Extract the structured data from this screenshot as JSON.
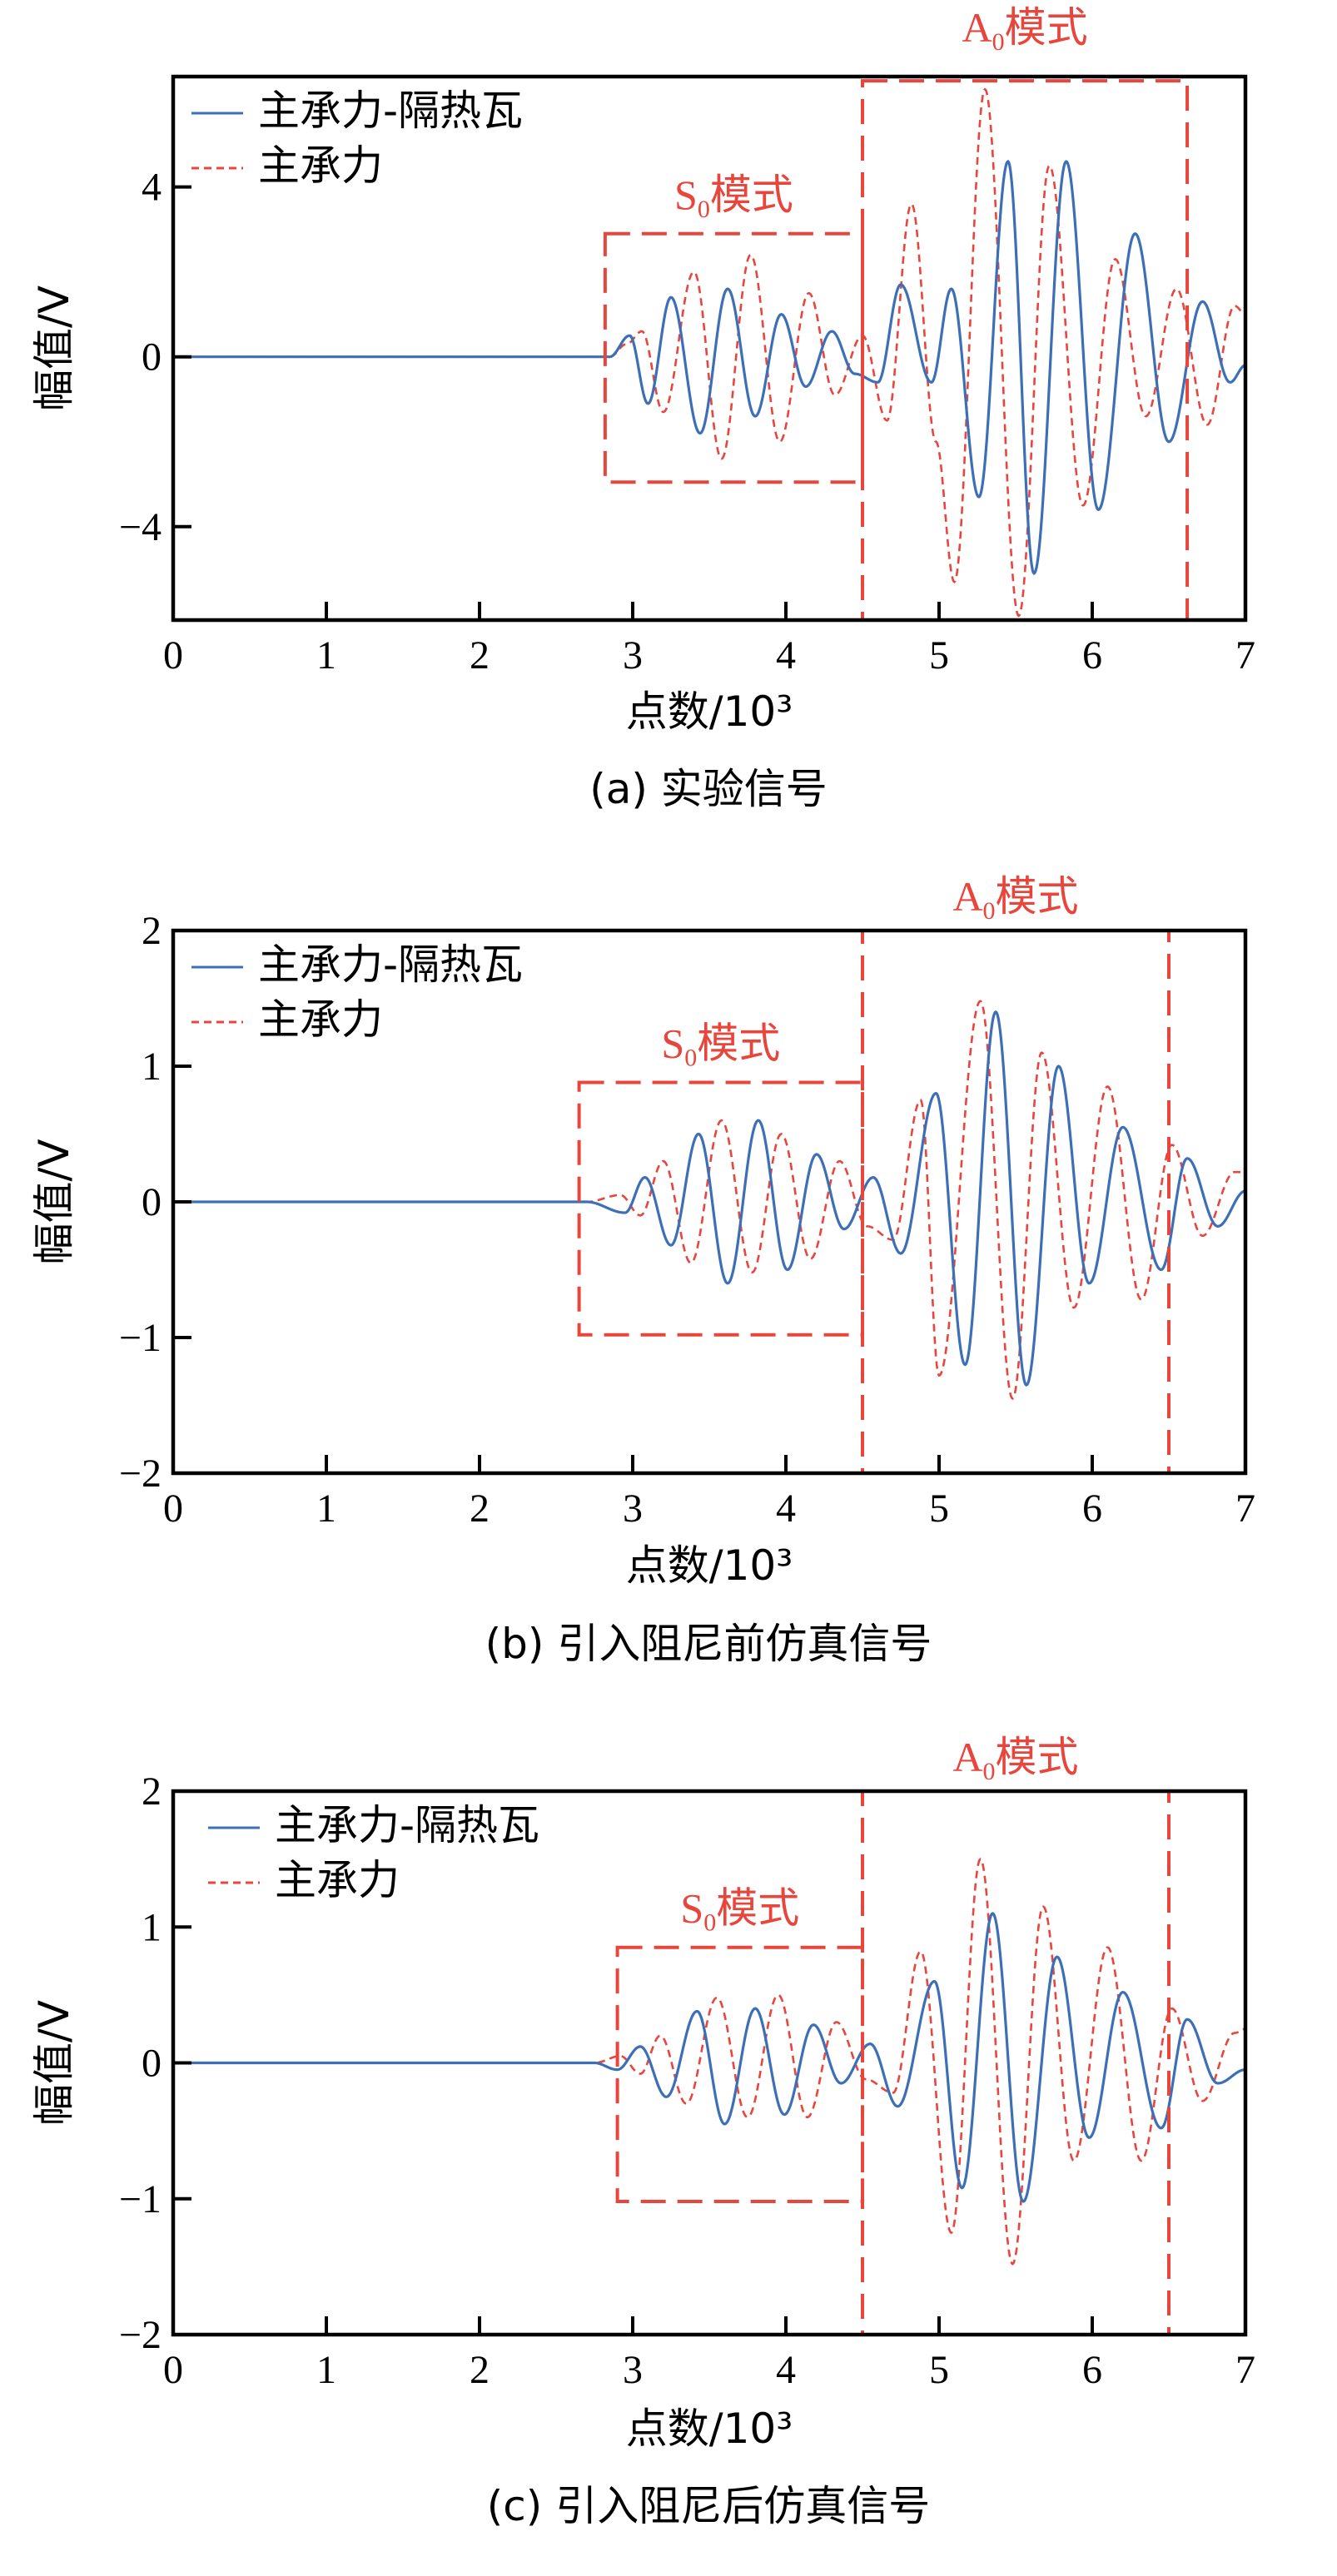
{
  "colors": {
    "blue": "#3d6fb6",
    "red": "#e8453c",
    "axis": "#000000"
  },
  "chart_data": [
    {
      "type": "line",
      "caption": "(a) 实验信号",
      "xlabel": "点数/10³",
      "ylabel": "幅值/V",
      "xlim": [
        0,
        7
      ],
      "ylim": [
        -6.2,
        6.6
      ],
      "xticks": [
        "0",
        "1",
        "2",
        "3",
        "4",
        "5",
        "6",
        "7"
      ],
      "yticks": [
        {
          "value": 4,
          "label": "4"
        },
        {
          "value": 0,
          "label": "0"
        },
        {
          "value": -4,
          "label": "−4"
        }
      ],
      "legend": {
        "position": "top-left",
        "entries": [
          "主承力-隔热瓦",
          "主承力"
        ]
      },
      "series": [
        {
          "name": "主承力-隔热瓦",
          "style": "solid",
          "onset": 2.85,
          "peaks": [
            [
              2.98,
              0.5
            ],
            [
              3.1,
              -1.1
            ],
            [
              3.25,
              1.4
            ],
            [
              3.44,
              -1.8
            ],
            [
              3.62,
              1.6
            ],
            [
              3.8,
              -1.4
            ],
            [
              3.97,
              1.0
            ],
            [
              4.13,
              -0.7
            ],
            [
              4.3,
              0.6
            ],
            [
              4.45,
              -0.4
            ],
            [
              4.6,
              -0.6
            ],
            [
              4.75,
              1.7
            ],
            [
              4.95,
              -0.6
            ],
            [
              5.08,
              1.6
            ],
            [
              5.26,
              -3.3
            ],
            [
              5.45,
              4.6
            ],
            [
              5.62,
              -5.1
            ],
            [
              5.83,
              4.6
            ],
            [
              6.04,
              -3.6
            ],
            [
              6.28,
              2.9
            ],
            [
              6.5,
              -2.0
            ],
            [
              6.72,
              1.3
            ],
            [
              6.9,
              -0.6
            ],
            [
              7.0,
              -0.2
            ]
          ]
        },
        {
          "name": "主承力",
          "style": "dashed",
          "onset": 2.85,
          "peaks": [
            [
              2.96,
              0.3
            ],
            [
              3.06,
              0.6
            ],
            [
              3.2,
              -1.3
            ],
            [
              3.4,
              2.0
            ],
            [
              3.58,
              -2.4
            ],
            [
              3.77,
              2.4
            ],
            [
              3.96,
              -2.0
            ],
            [
              4.15,
              1.5
            ],
            [
              4.32,
              -0.9
            ],
            [
              4.5,
              0.5
            ],
            [
              4.66,
              -1.5
            ],
            [
              4.82,
              3.6
            ],
            [
              4.98,
              -2.0
            ],
            [
              5.1,
              -5.3
            ],
            [
              5.3,
              6.3
            ],
            [
              5.52,
              -6.1
            ],
            [
              5.72,
              4.5
            ],
            [
              5.94,
              -3.5
            ],
            [
              6.15,
              2.3
            ],
            [
              6.35,
              -1.4
            ],
            [
              6.55,
              1.6
            ],
            [
              6.75,
              -1.6
            ],
            [
              6.93,
              1.2
            ],
            [
              7.0,
              1.0
            ]
          ]
        }
      ],
      "boxes": [
        {
          "label_main": "S",
          "label_sub": "0",
          "label_suffix": "模式",
          "x0": 2.82,
          "x1": 4.5,
          "y0": -2.95,
          "y1": 2.9
        },
        {
          "label_main": "A",
          "label_sub": "0",
          "label_suffix": "模式",
          "x0": 4.5,
          "x1": 6.62,
          "y0": -6.2,
          "y1": 6.5
        }
      ]
    },
    {
      "type": "line",
      "caption": "(b) 引入阻尼前仿真信号",
      "xlabel": "点数/10³",
      "ylabel": "幅值/V",
      "xlim": [
        0,
        7
      ],
      "ylim": [
        -2,
        2
      ],
      "xticks": [
        "0",
        "1",
        "2",
        "3",
        "4",
        "5",
        "6",
        "7"
      ],
      "yticks": [
        {
          "value": 2,
          "label": "2"
        },
        {
          "value": 1,
          "label": "1"
        },
        {
          "value": 0,
          "label": "0"
        },
        {
          "value": -1,
          "label": "−1"
        },
        {
          "value": -2,
          "label": "−2"
        }
      ],
      "legend": {
        "position": "top-left",
        "entries": [
          "主承力-隔热瓦",
          "主承力"
        ]
      },
      "series": [
        {
          "name": "主承力-隔热瓦",
          "style": "solid",
          "onset": 2.7,
          "peaks": [
            [
              2.95,
              -0.08
            ],
            [
              3.08,
              0.18
            ],
            [
              3.25,
              -0.32
            ],
            [
              3.43,
              0.5
            ],
            [
              3.62,
              -0.6
            ],
            [
              3.82,
              0.6
            ],
            [
              4.01,
              -0.5
            ],
            [
              4.2,
              0.35
            ],
            [
              4.38,
              -0.2
            ],
            [
              4.57,
              0.18
            ],
            [
              4.75,
              -0.38
            ],
            [
              4.98,
              0.8
            ],
            [
              5.17,
              -1.2
            ],
            [
              5.37,
              1.4
            ],
            [
              5.57,
              -1.35
            ],
            [
              5.78,
              1.0
            ],
            [
              5.98,
              -0.6
            ],
            [
              6.2,
              0.55
            ],
            [
              6.45,
              -0.5
            ],
            [
              6.62,
              0.32
            ],
            [
              6.82,
              -0.18
            ],
            [
              7.0,
              0.08
            ]
          ]
        },
        {
          "name": "主承力",
          "style": "dashed",
          "onset": 2.7,
          "peaks": [
            [
              2.92,
              0.05
            ],
            [
              3.05,
              -0.1
            ],
            [
              3.2,
              0.3
            ],
            [
              3.38,
              -0.45
            ],
            [
              3.58,
              0.6
            ],
            [
              3.78,
              -0.52
            ],
            [
              3.97,
              0.5
            ],
            [
              4.16,
              -0.42
            ],
            [
              4.35,
              0.3
            ],
            [
              4.53,
              -0.18
            ],
            [
              4.7,
              -0.28
            ],
            [
              4.88,
              0.75
            ],
            [
              5.0,
              -1.28
            ],
            [
              5.27,
              1.48
            ],
            [
              5.48,
              -1.45
            ],
            [
              5.67,
              1.1
            ],
            [
              5.88,
              -0.78
            ],
            [
              6.1,
              0.85
            ],
            [
              6.32,
              -0.72
            ],
            [
              6.52,
              0.42
            ],
            [
              6.72,
              -0.25
            ],
            [
              6.93,
              0.22
            ],
            [
              7.0,
              0.22
            ]
          ]
        }
      ],
      "boxes": [
        {
          "label_main": "S",
          "label_sub": "0",
          "label_suffix": "模式",
          "x0": 2.65,
          "x1": 4.5,
          "y0": -0.98,
          "y1": 0.88
        },
        {
          "label_main": "A",
          "label_sub": "0",
          "label_suffix": "模式",
          "x0": 4.5,
          "x1": 6.5,
          "y0": -2.0,
          "y1": 2.0
        }
      ]
    },
    {
      "type": "line",
      "caption": "(c) 引入阻尼后仿真信号",
      "xlabel": "点数/10³",
      "ylabel": "幅值/V",
      "xlim": [
        0,
        7
      ],
      "ylim": [
        -2,
        2
      ],
      "xticks": [
        "0",
        "1",
        "2",
        "3",
        "4",
        "5",
        "6",
        "7"
      ],
      "yticks": [
        {
          "value": 2,
          "label": "2"
        },
        {
          "value": 1,
          "label": "1"
        },
        {
          "value": 0,
          "label": "0"
        },
        {
          "value": -1,
          "label": "−1"
        },
        {
          "value": -2,
          "label": "−2"
        }
      ],
      "legend": {
        "position": "top-left",
        "entries": [
          "主承力-隔热瓦",
          "主承力"
        ]
      },
      "series": [
        {
          "name": "主承力-隔热瓦",
          "style": "solid",
          "onset": 2.75,
          "peaks": [
            [
              2.9,
              -0.05
            ],
            [
              3.05,
              0.12
            ],
            [
              3.22,
              -0.25
            ],
            [
              3.42,
              0.38
            ],
            [
              3.6,
              -0.45
            ],
            [
              3.8,
              0.4
            ],
            [
              3.99,
              -0.38
            ],
            [
              4.18,
              0.28
            ],
            [
              4.36,
              -0.15
            ],
            [
              4.55,
              0.14
            ],
            [
              4.73,
              -0.32
            ],
            [
              4.97,
              0.6
            ],
            [
              5.15,
              -0.92
            ],
            [
              5.35,
              1.1
            ],
            [
              5.55,
              -1.02
            ],
            [
              5.77,
              0.78
            ],
            [
              5.98,
              -0.55
            ],
            [
              6.2,
              0.52
            ],
            [
              6.45,
              -0.48
            ],
            [
              6.62,
              0.32
            ],
            [
              6.82,
              -0.15
            ],
            [
              7.0,
              -0.05
            ]
          ]
        },
        {
          "name": "主承力",
          "style": "dashed",
          "onset": 2.75,
          "peaks": [
            [
              2.92,
              0.05
            ],
            [
              3.05,
              -0.08
            ],
            [
              3.18,
              0.2
            ],
            [
              3.35,
              -0.3
            ],
            [
              3.55,
              0.48
            ],
            [
              3.75,
              -0.4
            ],
            [
              3.95,
              0.5
            ],
            [
              4.14,
              -0.4
            ],
            [
              4.33,
              0.3
            ],
            [
              4.52,
              -0.12
            ],
            [
              4.7,
              -0.22
            ],
            [
              4.88,
              0.82
            ],
            [
              5.08,
              -1.25
            ],
            [
              5.27,
              1.5
            ],
            [
              5.48,
              -1.48
            ],
            [
              5.68,
              1.15
            ],
            [
              5.88,
              -0.72
            ],
            [
              6.1,
              0.85
            ],
            [
              6.32,
              -0.72
            ],
            [
              6.52,
              0.4
            ],
            [
              6.72,
              -0.28
            ],
            [
              6.93,
              0.22
            ],
            [
              7.0,
              0.25
            ]
          ]
        }
      ],
      "boxes": [
        {
          "label_main": "S",
          "label_sub": "0",
          "label_suffix": "模式",
          "x0": 2.9,
          "x1": 4.5,
          "y0": -1.02,
          "y1": 0.85
        },
        {
          "label_main": "A",
          "label_sub": "0",
          "label_suffix": "模式",
          "x0": 4.5,
          "x1": 6.5,
          "y0": -2.0,
          "y1": 2.0
        }
      ]
    }
  ]
}
